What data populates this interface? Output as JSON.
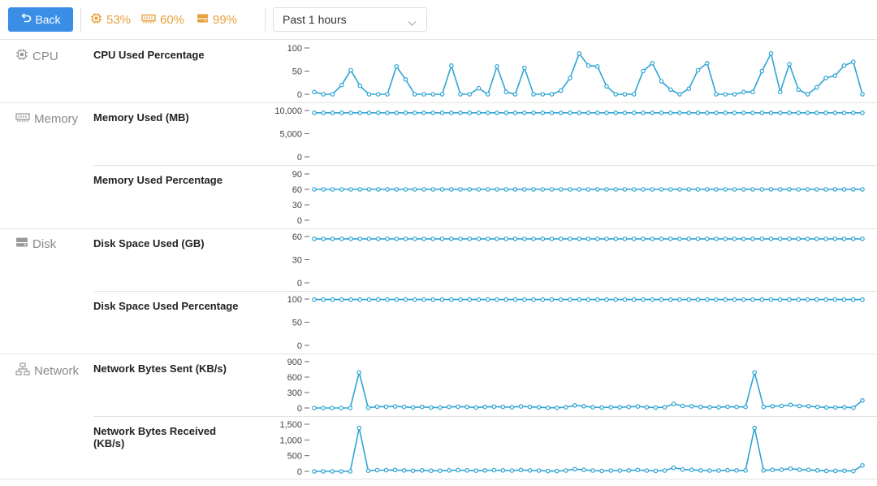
{
  "toolbar": {
    "back_label": "Back",
    "cpu_stat": "53%",
    "memory_stat": "60%",
    "disk_stat": "99%",
    "time_range": "Past 1 hours"
  },
  "colors": {
    "accent": "#3a8ee6",
    "warning": "#e6a23c",
    "series": "#2fa4d4"
  },
  "categories": {
    "cpu": "CPU",
    "memory": "Memory",
    "disk": "Disk",
    "network": "Network"
  },
  "metrics": {
    "cpu_used_pct": "CPU Used Percentage",
    "memory_used_mb": "Memory Used (MB)",
    "memory_used_pct": "Memory Used Percentage",
    "disk_used_gb": "Disk Space Used (GB)",
    "disk_used_pct": "Disk Space Used Percentage",
    "net_sent": "Network Bytes Sent (KB/s)",
    "net_received": "Network Bytes Received (KB/s)"
  },
  "chart_data": [
    {
      "type": "line",
      "title": "CPU Used Percentage",
      "ylim": [
        0,
        100
      ],
      "yticks": [
        {
          "v": 0,
          "label": "0"
        },
        {
          "v": 50,
          "label": "50"
        },
        {
          "v": 100,
          "label": "100"
        }
      ],
      "values": [
        5,
        0,
        0,
        20,
        52,
        18,
        0,
        0,
        0,
        60,
        32,
        0,
        0,
        0,
        0,
        62,
        0,
        0,
        13,
        0,
        60,
        5,
        0,
        57,
        0,
        0,
        0,
        8,
        35,
        88,
        62,
        60,
        17,
        0,
        0,
        0,
        50,
        67,
        28,
        10,
        0,
        12,
        52,
        67,
        0,
        0,
        0,
        5,
        5,
        50,
        88,
        5,
        65,
        10,
        0,
        15,
        35,
        40,
        62,
        70,
        0
      ]
    },
    {
      "type": "line",
      "title": "Memory Used (MB)",
      "ylim": [
        0,
        10000
      ],
      "yticks": [
        {
          "v": 0,
          "label": "0"
        },
        {
          "v": 5000,
          "label": "5,000"
        },
        {
          "v": 10000,
          "label": "10,000"
        }
      ],
      "values": [
        9500,
        9500,
        9500,
        9500,
        9500,
        9500,
        9500,
        9500,
        9500,
        9500,
        9500,
        9500,
        9500,
        9500,
        9500,
        9500,
        9500,
        9500,
        9500,
        9500,
        9500,
        9500,
        9500,
        9500,
        9500,
        9500,
        9500,
        9500,
        9500,
        9500,
        9500,
        9500,
        9500,
        9500,
        9500,
        9500,
        9500,
        9500,
        9500,
        9500,
        9500,
        9500,
        9500,
        9500,
        9500,
        9500,
        9500,
        9500,
        9500,
        9500,
        9500,
        9500,
        9500,
        9500,
        9500,
        9500,
        9500,
        9500,
        9500,
        9500,
        9500
      ]
    },
    {
      "type": "line",
      "title": "Memory Used Percentage",
      "ylim": [
        0,
        90
      ],
      "yticks": [
        {
          "v": 0,
          "label": "0"
        },
        {
          "v": 30,
          "label": "30"
        },
        {
          "v": 60,
          "label": "60"
        },
        {
          "v": 90,
          "label": "90"
        }
      ],
      "values": [
        60,
        60,
        60,
        60,
        60,
        60,
        60,
        60,
        60,
        60,
        60,
        60,
        60,
        60,
        60,
        60,
        60,
        60,
        60,
        60,
        60,
        60,
        60,
        60,
        60,
        60,
        60,
        60,
        60,
        60,
        60,
        60,
        60,
        60,
        60,
        60,
        60,
        60,
        60,
        60,
        60,
        60,
        60,
        60,
        60,
        60,
        60,
        60,
        60,
        60,
        60,
        60,
        60,
        60,
        60,
        60,
        60,
        60,
        60,
        60,
        60
      ]
    },
    {
      "type": "line",
      "title": "Disk Space Used (GB)",
      "ylim": [
        0,
        60
      ],
      "yticks": [
        {
          "v": 0,
          "label": "0"
        },
        {
          "v": 30,
          "label": "30"
        },
        {
          "v": 60,
          "label": "60"
        }
      ],
      "values": [
        57,
        57,
        57,
        57,
        57,
        57,
        57,
        57,
        57,
        57,
        57,
        57,
        57,
        57,
        57,
        57,
        57,
        57,
        57,
        57,
        57,
        57,
        57,
        57,
        57,
        57,
        57,
        57,
        57,
        57,
        57,
        57,
        57,
        57,
        57,
        57,
        57,
        57,
        57,
        57,
        57,
        57,
        57,
        57,
        57,
        57,
        57,
        57,
        57,
        57,
        57,
        57,
        57,
        57,
        57,
        57,
        57,
        57,
        57,
        57,
        57
      ]
    },
    {
      "type": "line",
      "title": "Disk Space Used Percentage",
      "ylim": [
        0,
        100
      ],
      "yticks": [
        {
          "v": 0,
          "label": "0"
        },
        {
          "v": 50,
          "label": "50"
        },
        {
          "v": 100,
          "label": "100"
        }
      ],
      "values": [
        99,
        99,
        99,
        99,
        99,
        99,
        99,
        99,
        99,
        99,
        99,
        99,
        99,
        99,
        99,
        99,
        99,
        99,
        99,
        99,
        99,
        99,
        99,
        99,
        99,
        99,
        99,
        99,
        99,
        99,
        99,
        99,
        99,
        99,
        99,
        99,
        99,
        99,
        99,
        99,
        99,
        99,
        99,
        99,
        99,
        99,
        99,
        99,
        99,
        99,
        99,
        99,
        99,
        99,
        99,
        99,
        99,
        99,
        99,
        99,
        99
      ]
    },
    {
      "type": "line",
      "title": "Network Bytes Sent (KB/s)",
      "ylim": [
        0,
        900
      ],
      "yticks": [
        {
          "v": 0,
          "label": "0"
        },
        {
          "v": 300,
          "label": "300"
        },
        {
          "v": 600,
          "label": "600"
        },
        {
          "v": 900,
          "label": "900"
        }
      ],
      "values": [
        0,
        0,
        0,
        0,
        0,
        690,
        5,
        25,
        25,
        30,
        20,
        10,
        20,
        10,
        10,
        20,
        25,
        20,
        10,
        20,
        25,
        20,
        15,
        30,
        20,
        15,
        5,
        5,
        15,
        50,
        35,
        15,
        10,
        15,
        15,
        20,
        30,
        15,
        10,
        15,
        80,
        40,
        35,
        20,
        15,
        15,
        25,
        20,
        20,
        690,
        20,
        35,
        40,
        60,
        40,
        35,
        20,
        10,
        10,
        15,
        5,
        145
      ]
    },
    {
      "type": "line",
      "title": "Network Bytes Received (KB/s)",
      "ylim": [
        0,
        1500
      ],
      "yticks": [
        {
          "v": 0,
          "label": "0"
        },
        {
          "v": 500,
          "label": "500"
        },
        {
          "v": 1000,
          "label": "1,000"
        },
        {
          "v": 1500,
          "label": "1,500"
        }
      ],
      "values": [
        0,
        0,
        0,
        0,
        0,
        1380,
        20,
        40,
        40,
        45,
        30,
        20,
        30,
        20,
        20,
        30,
        40,
        30,
        20,
        30,
        40,
        30,
        25,
        45,
        30,
        25,
        10,
        10,
        25,
        70,
        50,
        25,
        15,
        25,
        25,
        30,
        45,
        25,
        15,
        25,
        120,
        60,
        50,
        30,
        25,
        25,
        35,
        30,
        30,
        1380,
        30,
        50,
        55,
        85,
        55,
        50,
        30,
        15,
        15,
        20,
        10,
        190
      ]
    }
  ]
}
